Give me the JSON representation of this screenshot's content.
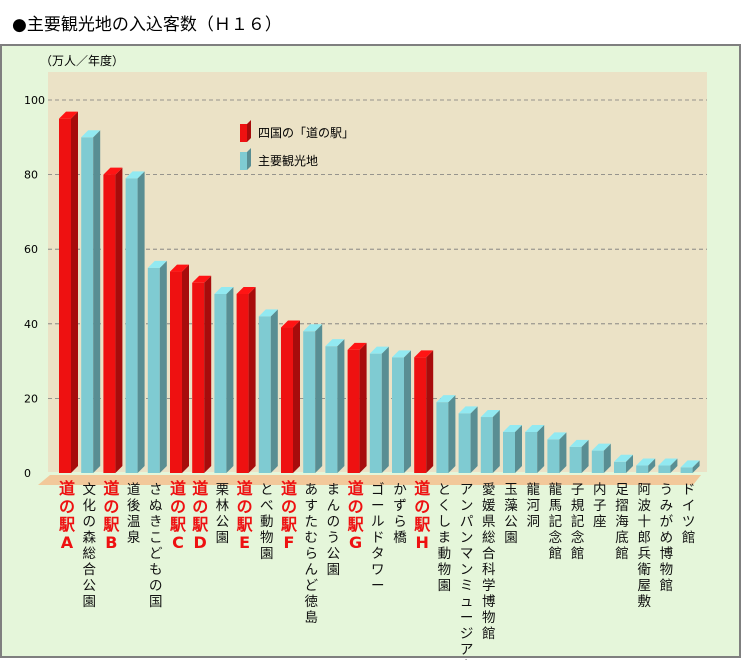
{
  "title": "●主要観光地の入込客数（Ｈ１６）",
  "chart_data": {
    "type": "bar",
    "unit_label": "（万人／年度）",
    "ylim": [
      0,
      100
    ],
    "yticks": [
      0,
      20,
      40,
      60,
      80,
      100
    ],
    "grid": true,
    "legend_position": "top-center",
    "series": [
      {
        "name": "四国の「道の駅」",
        "color": "#ee1111"
      },
      {
        "name": "主要観光地",
        "color": "#7fcbd2"
      }
    ],
    "categories": [
      "道の駅A",
      "文化の森総合公園",
      "道の駅B",
      "道後温泉",
      "さぬきこどもの国",
      "道の駅C",
      "道の駅D",
      "栗林公園",
      "道の駅E",
      "とべ動物園",
      "道の駅F",
      "あすたむらんど徳島",
      "まんのう公園",
      "道の駅G",
      "ゴールドタワー",
      "かずら橋",
      "道の駅H",
      "とくしま動物園",
      "アンパンマンミュージアム",
      "愛媛県総合科学博物館",
      "玉藻公園",
      "龍河洞",
      "龍馬記念館",
      "子規記念館",
      "内子座",
      "足摺海底館",
      "阿波十郎兵衛屋敷",
      "うみがめ博物館",
      "ドイツ館"
    ],
    "values": [
      95,
      90,
      80,
      79,
      55,
      54,
      51,
      48,
      48,
      42,
      39,
      38,
      34,
      33,
      32,
      31,
      31,
      19,
      16,
      15,
      11,
      11,
      9,
      7,
      6,
      3,
      2,
      2,
      1.5
    ],
    "series_index": [
      0,
      1,
      0,
      1,
      1,
      0,
      0,
      1,
      0,
      1,
      0,
      1,
      1,
      0,
      1,
      1,
      0,
      1,
      1,
      1,
      1,
      1,
      1,
      1,
      1,
      1,
      1,
      1,
      1
    ]
  }
}
